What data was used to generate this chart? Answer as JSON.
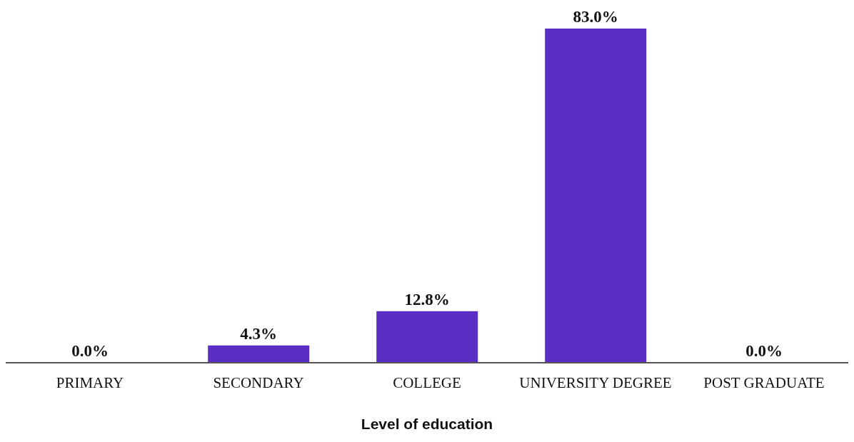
{
  "chart_data": {
    "type": "bar",
    "xlabel": "Level of education",
    "categories": [
      "PRIMARY",
      "SECONDARY",
      "COLLEGE",
      "UNIVERSITY DEGREE",
      "POST GRADUATE"
    ],
    "values": [
      0.0,
      4.3,
      12.8,
      83.0,
      0.0
    ],
    "value_labels": [
      "0.0%",
      "4.3%",
      "12.8%",
      "83.0%",
      "0.0%"
    ],
    "color": "#5b2fc6",
    "grid": false,
    "legend": false
  }
}
